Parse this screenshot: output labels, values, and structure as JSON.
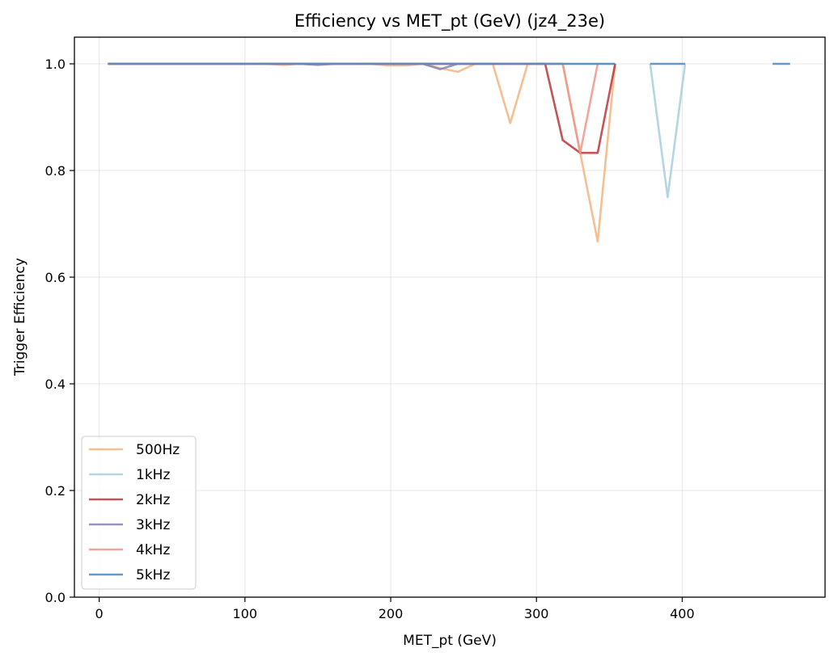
{
  "chart_data": {
    "type": "line",
    "title": "Efficiency vs MET_pt (GeV) (jz4_23e)",
    "xlabel": "MET_pt (GeV)",
    "ylabel": "Trigger Efficiency",
    "xlim": [
      -17,
      498
    ],
    "ylim": [
      0.0,
      1.05
    ],
    "xticks": [
      0,
      100,
      200,
      300,
      400
    ],
    "yticks": [
      0.0,
      0.2,
      0.4,
      0.6,
      0.8,
      1.0
    ],
    "grid": true,
    "legend_position": "lower-left",
    "series": [
      {
        "name": "500Hz",
        "color": "#f4b47e",
        "x": [
          6,
          18,
          30,
          42,
          54,
          66,
          78,
          90,
          102,
          114,
          126,
          138,
          150,
          162,
          174,
          186,
          198,
          210,
          222,
          234,
          246,
          258,
          270,
          282,
          294,
          306,
          318,
          330,
          342,
          354,
          366,
          378
        ],
        "y": [
          1.0,
          1.0,
          1.0,
          1.0,
          1.0,
          1.0,
          1.0,
          1.0,
          1.0,
          1.0,
          0.998,
          1.0,
          1.0,
          1.0,
          1.0,
          1.0,
          0.997,
          0.997,
          1.0,
          0.992,
          0.985,
          1.0,
          1.0,
          0.889,
          1.0,
          1.0,
          1.0,
          0.833,
          0.667,
          1.0,
          null,
          null
        ]
      },
      {
        "name": "1kHz",
        "color": "#a6cfdb",
        "x": [
          6,
          18,
          30,
          42,
          54,
          66,
          78,
          90,
          102,
          114,
          126,
          138,
          150,
          162,
          174,
          186,
          198,
          210,
          222,
          234,
          246,
          258,
          270,
          282,
          294,
          306,
          318,
          330,
          342,
          354,
          366,
          378,
          390,
          402
        ],
        "y": [
          1.0,
          1.0,
          1.0,
          1.0,
          1.0,
          1.0,
          1.0,
          1.0,
          1.0,
          1.0,
          1.0,
          1.0,
          1.0,
          1.0,
          1.0,
          1.0,
          1.0,
          1.0,
          1.0,
          1.0,
          1.0,
          1.0,
          1.0,
          1.0,
          1.0,
          1.0,
          1.0,
          1.0,
          1.0,
          1.0,
          null,
          1.0,
          0.75,
          1.0
        ]
      },
      {
        "name": "2kHz",
        "color": "#b8363a",
        "x": [
          6,
          18,
          30,
          42,
          54,
          66,
          78,
          90,
          102,
          114,
          126,
          138,
          150,
          162,
          174,
          186,
          198,
          210,
          222,
          234,
          246,
          258,
          270,
          282,
          294,
          306,
          318,
          330,
          342,
          354
        ],
        "y": [
          1.0,
          1.0,
          1.0,
          1.0,
          1.0,
          1.0,
          1.0,
          1.0,
          1.0,
          1.0,
          1.0,
          1.0,
          1.0,
          1.0,
          1.0,
          1.0,
          1.0,
          1.0,
          1.0,
          1.0,
          1.0,
          1.0,
          1.0,
          1.0,
          1.0,
          1.0,
          0.857,
          0.833,
          0.833,
          1.0
        ]
      },
      {
        "name": "3kHz",
        "color": "#8584b6",
        "x": [
          6,
          18,
          30,
          42,
          54,
          66,
          78,
          90,
          102,
          114,
          126,
          138,
          150,
          162,
          174,
          186,
          198,
          210,
          222,
          234,
          246
        ],
        "y": [
          1.0,
          1.0,
          1.0,
          1.0,
          1.0,
          1.0,
          1.0,
          1.0,
          1.0,
          1.0,
          1.0,
          1.0,
          0.998,
          1.0,
          1.0,
          1.0,
          1.0,
          1.0,
          1.0,
          0.99,
          1.0
        ]
      },
      {
        "name": "4kHz",
        "color": "#f0958a",
        "x": [
          6,
          18,
          30,
          42,
          54,
          66,
          78,
          90,
          102,
          114,
          126,
          138,
          150,
          162,
          174,
          186,
          198,
          210,
          222,
          234,
          246,
          258,
          270,
          282,
          294,
          306,
          318,
          330,
          342
        ],
        "y": [
          1.0,
          1.0,
          1.0,
          1.0,
          1.0,
          1.0,
          1.0,
          1.0,
          1.0,
          1.0,
          1.0,
          1.0,
          1.0,
          1.0,
          1.0,
          1.0,
          1.0,
          1.0,
          1.0,
          1.0,
          1.0,
          1.0,
          1.0,
          1.0,
          1.0,
          1.0,
          1.0,
          0.833,
          1.0
        ]
      },
      {
        "name": "5kHz",
        "color": "#4a88bf",
        "x": [
          6,
          18,
          30,
          42,
          54,
          66,
          78,
          90,
          102,
          114,
          126,
          138,
          150,
          162,
          174,
          186,
          198,
          210,
          222,
          234,
          246,
          258,
          270,
          282,
          294,
          306,
          318,
          330,
          342,
          354,
          366,
          378,
          390,
          402,
          414,
          426,
          438,
          450,
          462,
          474
        ],
        "y": [
          1.0,
          1.0,
          1.0,
          1.0,
          1.0,
          1.0,
          1.0,
          1.0,
          1.0,
          1.0,
          1.0,
          1.0,
          1.0,
          1.0,
          1.0,
          1.0,
          1.0,
          1.0,
          1.0,
          1.0,
          1.0,
          1.0,
          1.0,
          1.0,
          1.0,
          1.0,
          1.0,
          1.0,
          1.0,
          1.0,
          null,
          1.0,
          1.0,
          1.0,
          null,
          null,
          null,
          null,
          1.0,
          1.0
        ]
      }
    ]
  }
}
